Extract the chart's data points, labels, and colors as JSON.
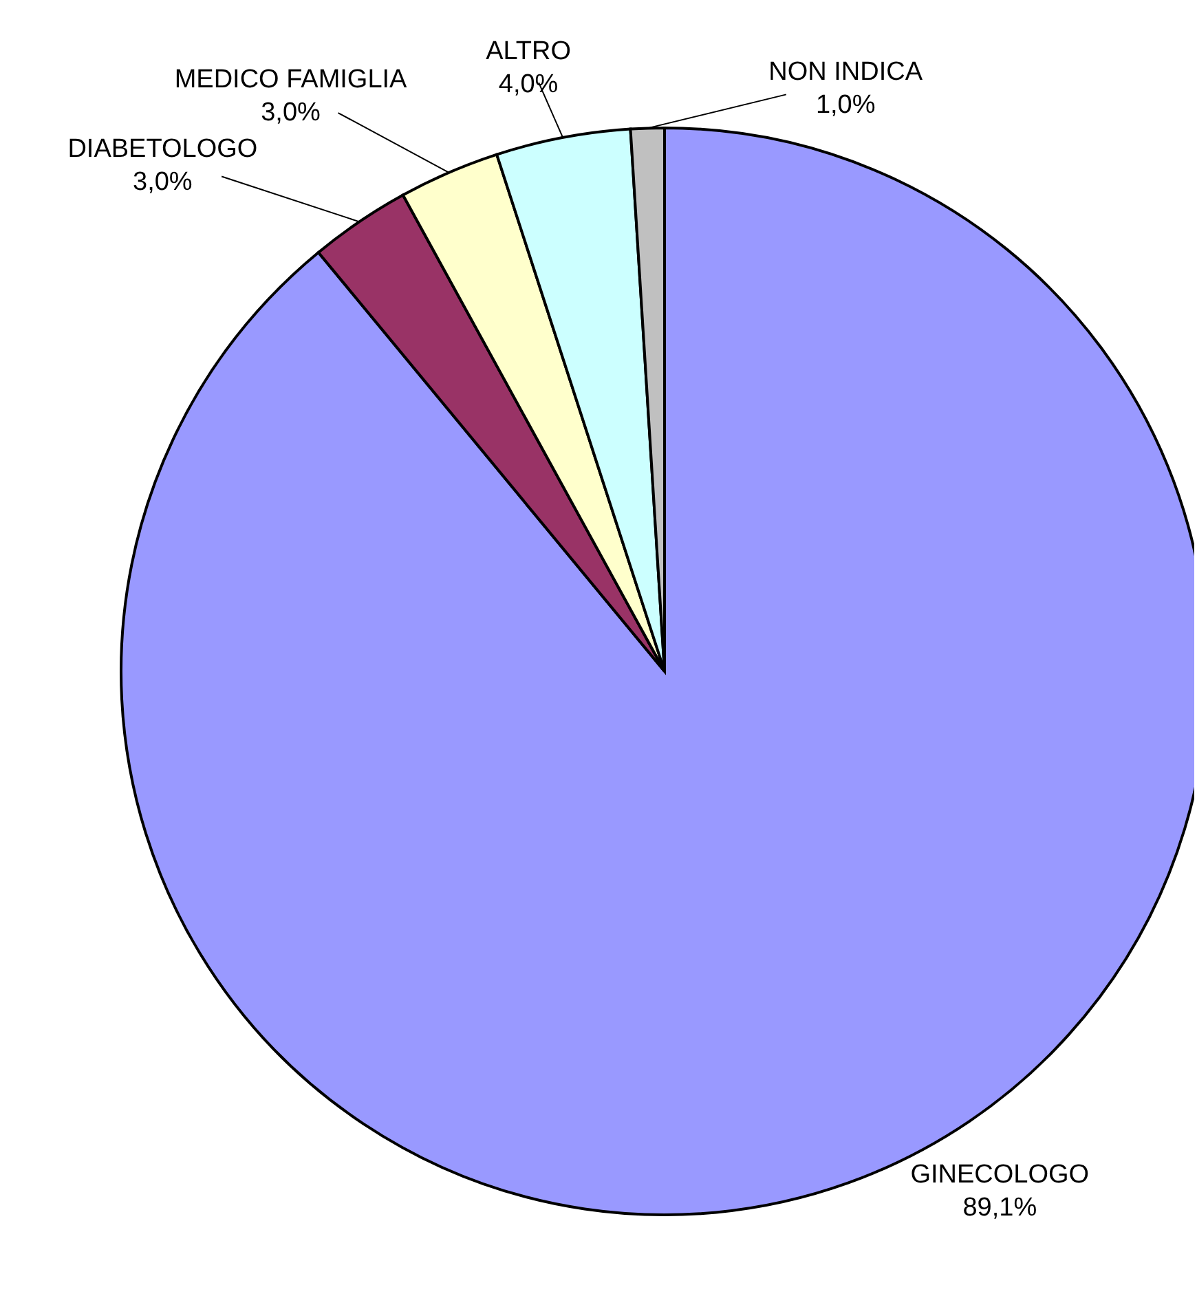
{
  "chart_data": {
    "type": "pie",
    "categories": [
      "GINECOLOGO",
      "DIABETOLOGO",
      "MEDICO FAMIGLIA",
      "ALTRO",
      "NON INDICA"
    ],
    "values": [
      89.1,
      3.0,
      3.0,
      4.0,
      1.0
    ],
    "colors": [
      "#9999ff",
      "#993366",
      "#ffffcc",
      "#ccffff",
      "#c0c0c0"
    ],
    "value_labels": [
      "89,1%",
      "3,0%",
      "3,0%",
      "4,0%",
      "1,0%"
    ]
  }
}
